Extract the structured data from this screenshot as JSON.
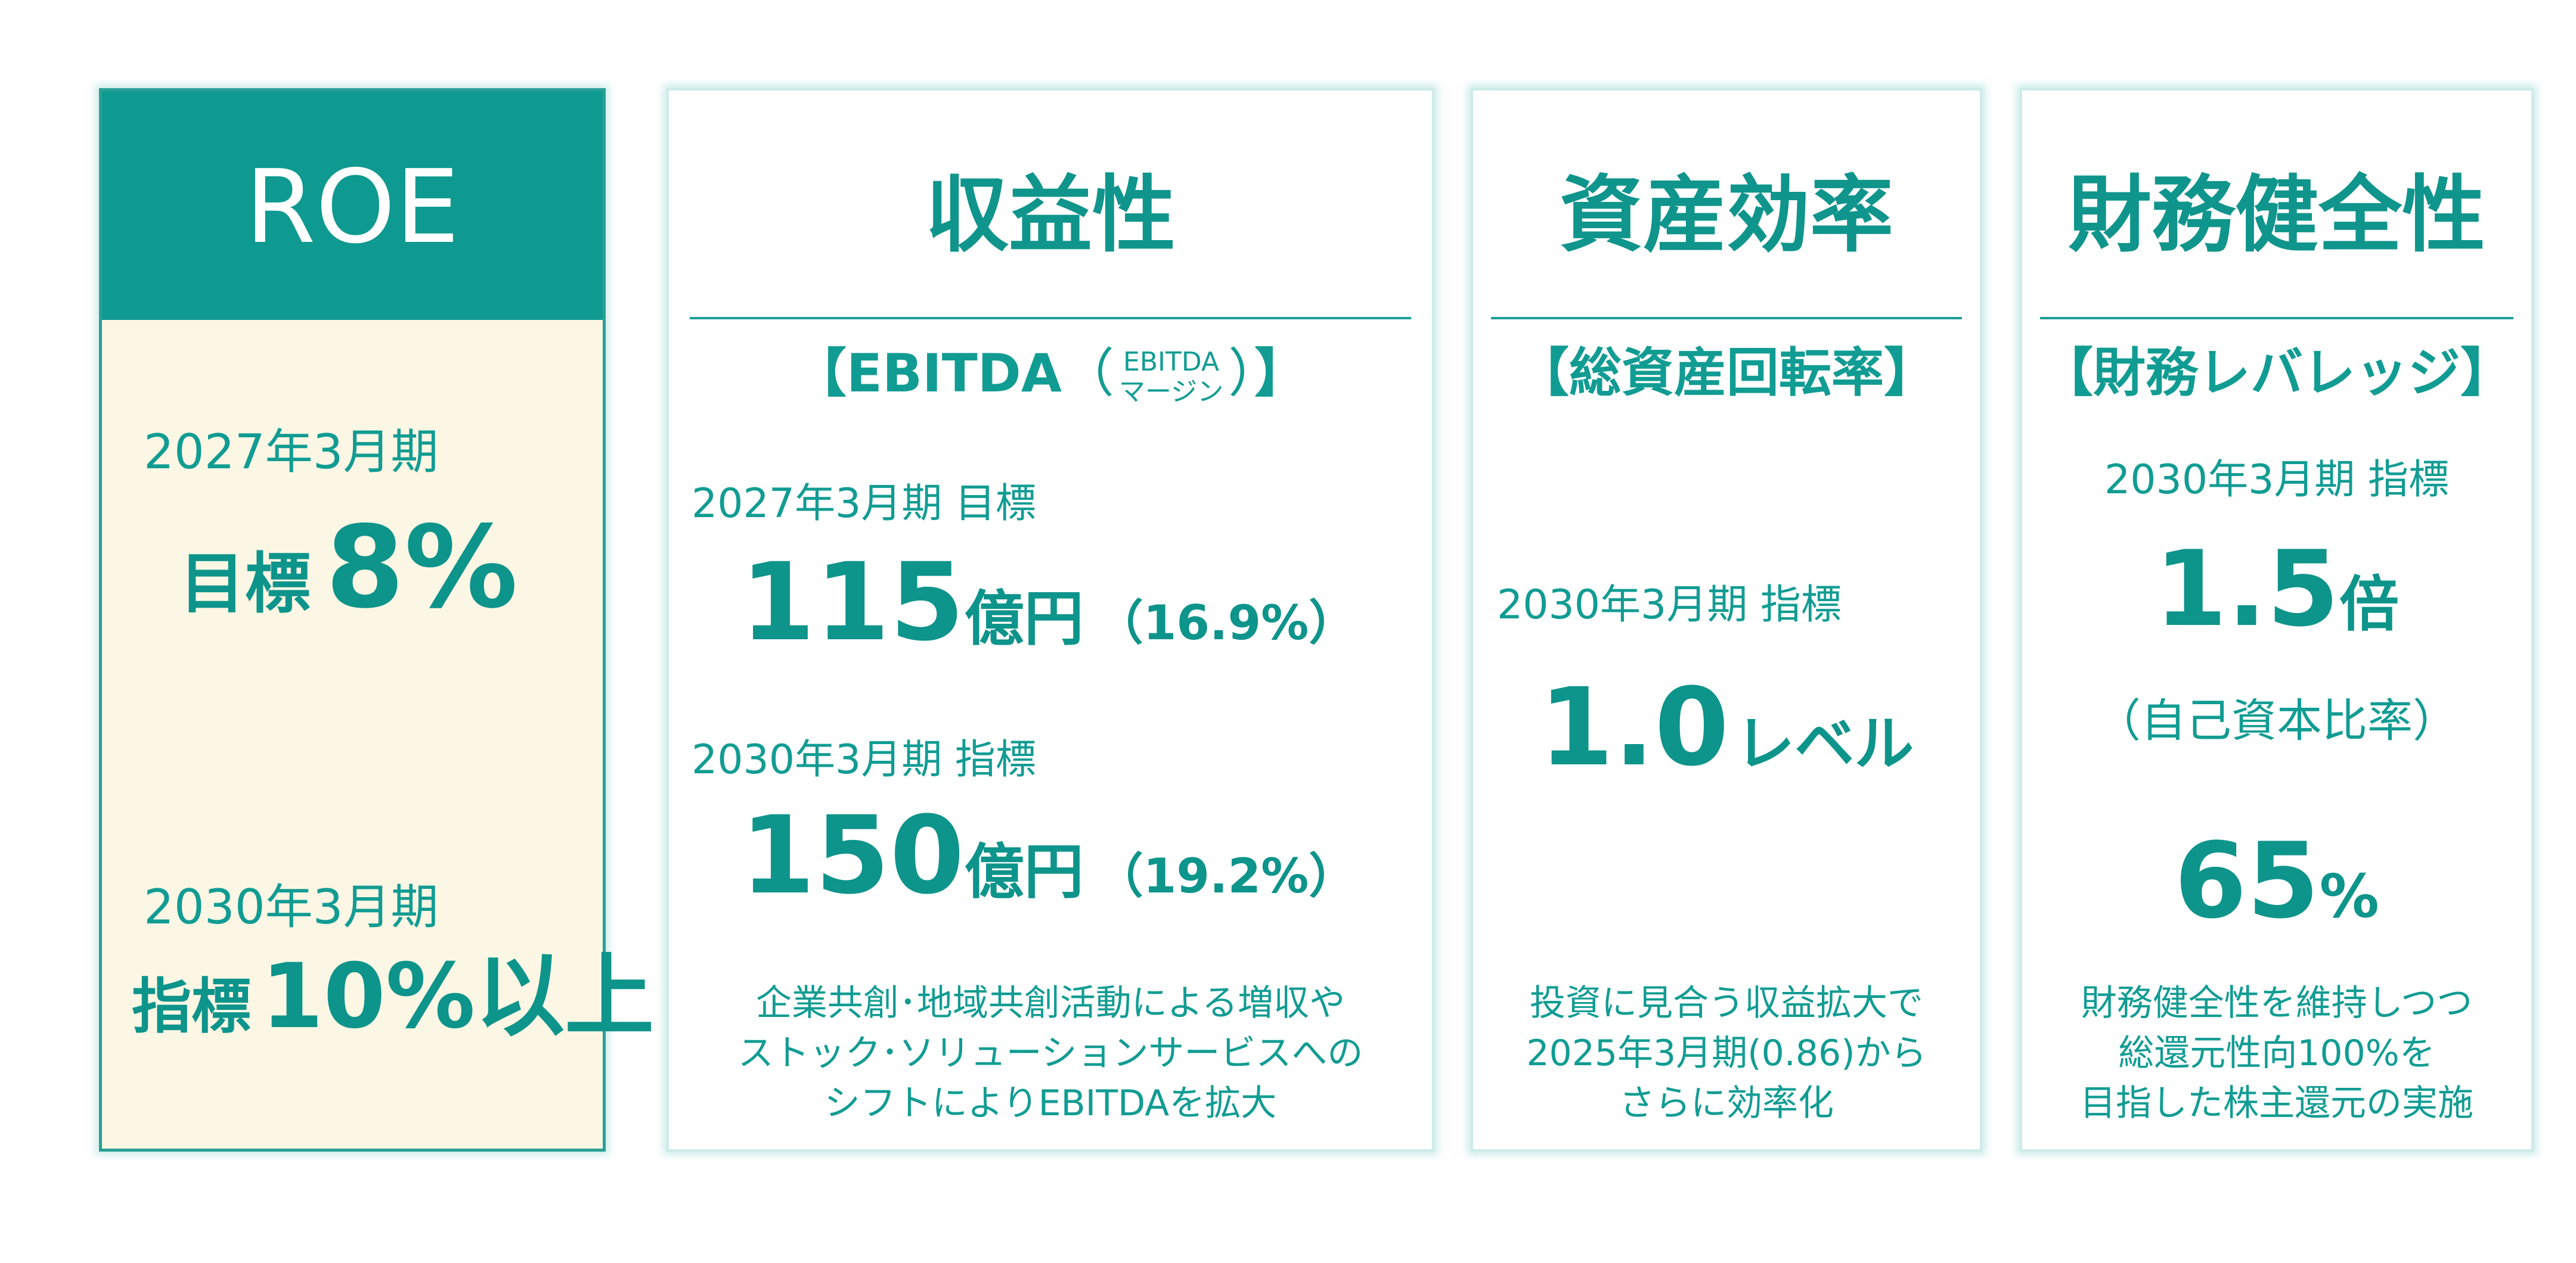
{
  "roe": {
    "title": "ROE",
    "p1_label": "2027年3月期",
    "p1_prefix": "目標",
    "p1_value": "8%",
    "p2_label": "2030年3月期",
    "p2_prefix": "指標",
    "p2_value": "10%以上"
  },
  "profit": {
    "heading": "収益性",
    "metric_open": "【EBITDA",
    "metric_paren_open": "（",
    "metric_note_top": "EBITDA",
    "metric_note_bottom": "マージン",
    "metric_paren_close": "）",
    "metric_close": "】",
    "p1_label": "2027年3月期 目標",
    "p1_value": "115",
    "p1_unit": "億円",
    "p1_margin": "（16.9%）",
    "p2_label": "2030年3月期 指標",
    "p2_value": "150",
    "p2_unit": "億円",
    "p2_margin": "（19.2%）",
    "desc_line1": "企業共創･地域共創活動による増収や",
    "desc_line2": "ストック･ソリューションサービスへの",
    "desc_line3": "シフトによりEBITDAを拡大"
  },
  "asset": {
    "heading": "資産効率",
    "metric": "【総資産回転率】",
    "p_label": "2030年3月期 指標",
    "p_value": "1.0",
    "p_unit": "レベル",
    "desc_line1": "投資に見合う収益拡大で",
    "desc_line2": "2025年3月期(0.86)から",
    "desc_line3": "さらに効率化"
  },
  "finance": {
    "heading": "財務健全性",
    "metric": "【財務レバレッジ】",
    "p_label": "2030年3月期 指標",
    "p_value": "1.5",
    "p_unit": "倍",
    "sub_label": "（自己資本比率）",
    "sub_value": "65",
    "sub_unit": "%",
    "desc_line1": "財務健全性を維持しつつ",
    "desc_line2": "総還元性向100%を",
    "desc_line3": "目指した株主還元の実施"
  }
}
